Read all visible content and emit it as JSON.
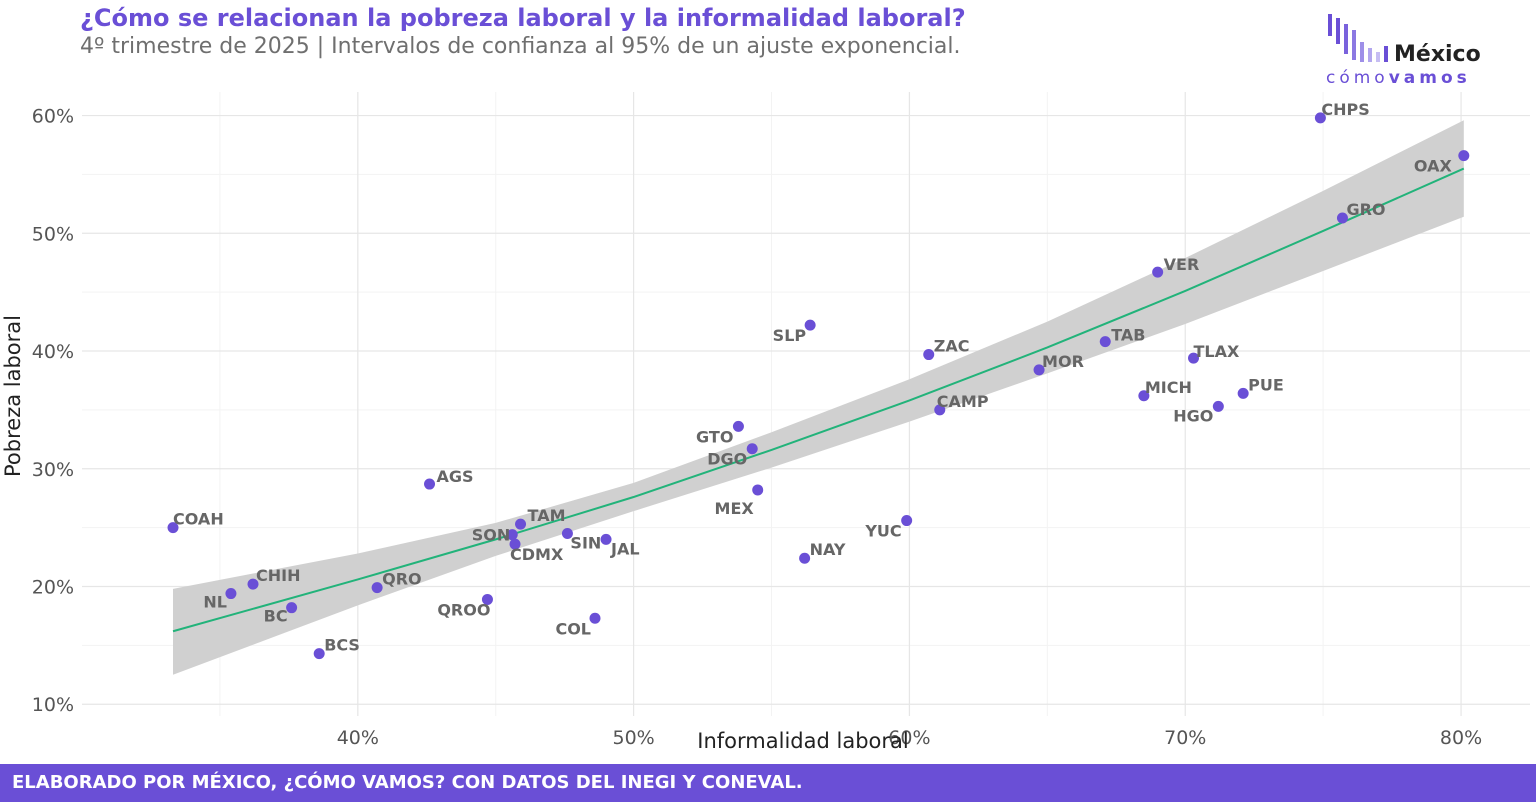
{
  "header": {
    "title": "¿Cómo se relacionan la pobreza laboral y la informalidad laboral?",
    "subtitle": "4º trimestre de 2025 | Intervalos de confianza al 95% de un ajuste exponencial."
  },
  "logo": {
    "word_top": "México",
    "word_bottom_light": "cómo",
    "word_bottom_bold": "vamos"
  },
  "footer": {
    "text": "ELABORADO POR MÉXICO, ¿CÓMO VAMOS? CON DATOS DEL INEGI Y CONEVAL."
  },
  "colors": {
    "accent": "#6a4fd6",
    "point": "#6a4fd6",
    "fit_line": "#22b37a",
    "ribbon": "#d0d0d0",
    "label": "#666666"
  },
  "chart_data": {
    "type": "scatter",
    "xlabel": "Informalidad laboral",
    "ylabel": "Pobreza laboral",
    "xlim": [
      30.0,
      82.5
    ],
    "ylim": [
      9.0,
      62.0
    ],
    "x_ticks": [
      40,
      50,
      60,
      70,
      80
    ],
    "y_ticks": [
      10,
      20,
      30,
      40,
      50,
      60
    ],
    "x_tick_labels": [
      "40%",
      "50%",
      "60%",
      "70%",
      "80%"
    ],
    "y_tick_labels": [
      "10%",
      "20%",
      "30%",
      "40%",
      "50%",
      "60%"
    ],
    "grid": true,
    "points": [
      {
        "label": "COAH",
        "x": 33.3,
        "y": 25.0
      },
      {
        "label": "NL",
        "x": 35.4,
        "y": 19.4
      },
      {
        "label": "CHIH",
        "x": 36.2,
        "y": 20.2
      },
      {
        "label": "BC",
        "x": 37.6,
        "y": 18.2
      },
      {
        "label": "BCS",
        "x": 38.6,
        "y": 14.3
      },
      {
        "label": "QRO",
        "x": 40.7,
        "y": 19.9
      },
      {
        "label": "AGS",
        "x": 42.6,
        "y": 28.7
      },
      {
        "label": "QROO",
        "x": 44.7,
        "y": 18.9
      },
      {
        "label": "SON",
        "x": 45.6,
        "y": 24.4
      },
      {
        "label": "CDMX",
        "x": 45.7,
        "y": 23.6
      },
      {
        "label": "TAM",
        "x": 45.9,
        "y": 25.3
      },
      {
        "label": "SIN",
        "x": 47.6,
        "y": 24.5
      },
      {
        "label": "COL",
        "x": 48.6,
        "y": 17.3
      },
      {
        "label": "JAL",
        "x": 49.0,
        "y": 24.0
      },
      {
        "label": "GTO",
        "x": 53.8,
        "y": 33.6
      },
      {
        "label": "DGO",
        "x": 54.3,
        "y": 31.7
      },
      {
        "label": "MEX",
        "x": 54.5,
        "y": 28.2
      },
      {
        "label": "NAY",
        "x": 56.2,
        "y": 22.4
      },
      {
        "label": "SLP",
        "x": 56.4,
        "y": 42.2
      },
      {
        "label": "YUC",
        "x": 59.9,
        "y": 25.6
      },
      {
        "label": "ZAC",
        "x": 60.7,
        "y": 39.7
      },
      {
        "label": "CAMP",
        "x": 61.1,
        "y": 35.0
      },
      {
        "label": "MOR",
        "x": 64.7,
        "y": 38.4
      },
      {
        "label": "TAB",
        "x": 67.1,
        "y": 40.8
      },
      {
        "label": "MICH",
        "x": 68.5,
        "y": 36.2
      },
      {
        "label": "VER",
        "x": 69.0,
        "y": 46.7
      },
      {
        "label": "TLAX",
        "x": 70.3,
        "y": 39.4
      },
      {
        "label": "HGO",
        "x": 71.2,
        "y": 35.3
      },
      {
        "label": "PUE",
        "x": 72.1,
        "y": 36.4
      },
      {
        "label": "CHPS",
        "x": 74.9,
        "y": 59.8
      },
      {
        "label": "GRO",
        "x": 75.7,
        "y": 51.3
      },
      {
        "label": "OAX",
        "x": 80.1,
        "y": 56.6
      }
    ],
    "fit": {
      "type": "exponential",
      "x": [
        33.3,
        40,
        45,
        50,
        55,
        60,
        65,
        70,
        75,
        80.1
      ],
      "y": [
        16.2,
        20.6,
        24.0,
        27.6,
        31.6,
        35.8,
        40.3,
        45.1,
        50.2,
        55.5
      ],
      "ci_lower": [
        12.5,
        18.4,
        22.6,
        26.4,
        30.1,
        34.0,
        38.1,
        42.3,
        46.8,
        51.4
      ],
      "ci_upper": [
        19.8,
        22.8,
        25.4,
        28.8,
        33.1,
        37.6,
        42.5,
        47.9,
        53.6,
        59.6
      ]
    }
  }
}
